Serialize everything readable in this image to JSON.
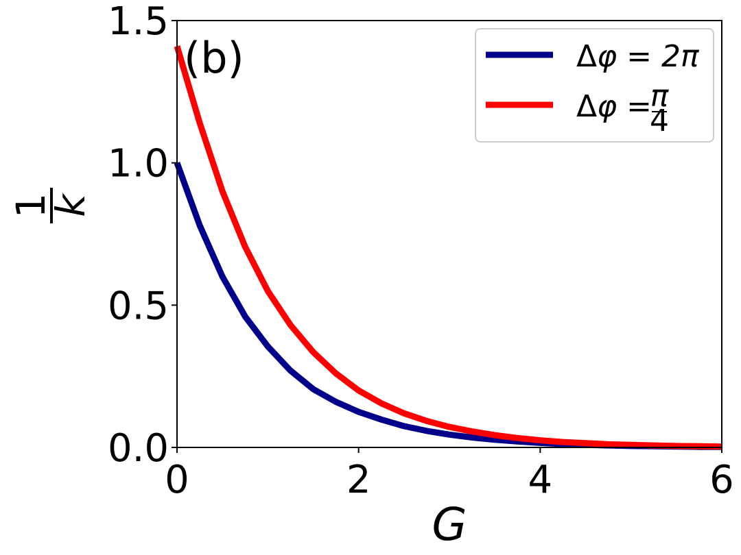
{
  "chart_data": {
    "type": "line",
    "panel_label": "(b)",
    "xlabel": "G",
    "ylabel_numerator": "1",
    "ylabel_denominator": "k",
    "xlim": [
      0,
      6
    ],
    "ylim": [
      0,
      1.5
    ],
    "xticks": [
      "0",
      "2",
      "4",
      "6"
    ],
    "yticks": [
      "0.0",
      "0.5",
      "1.0",
      "1.5"
    ],
    "grid": false,
    "legend_position": "top-right",
    "x": [
      0,
      0.25,
      0.5,
      0.75,
      1.0,
      1.25,
      1.5,
      1.75,
      2.0,
      2.25,
      2.5,
      2.75,
      3.0,
      3.25,
      3.5,
      3.75,
      4.0,
      4.25,
      4.5,
      4.75,
      5.0,
      5.25,
      5.5,
      5.75,
      6.0
    ],
    "series": [
      {
        "name": "Δφ = 2π",
        "legend_prefix": "Δ",
        "legend_phi": "φ",
        "legend_eq": " = ",
        "legend_value": "2π",
        "color": "#00008b",
        "values": [
          1.0,
          0.78,
          0.6,
          0.46,
          0.355,
          0.27,
          0.205,
          0.16,
          0.125,
          0.098,
          0.075,
          0.058,
          0.045,
          0.035,
          0.027,
          0.021,
          0.016,
          0.012,
          0.009,
          0.007,
          0.005,
          0.004,
          0.003,
          0.002,
          0.002
        ]
      },
      {
        "name": "Δφ = π/4",
        "legend_prefix": "Δ",
        "legend_phi": "φ",
        "legend_eq": " = ",
        "legend_frac_num": "π",
        "legend_frac_den": "4",
        "color": "#ff0000",
        "values": [
          1.41,
          1.14,
          0.9,
          0.705,
          0.55,
          0.43,
          0.335,
          0.26,
          0.2,
          0.155,
          0.12,
          0.093,
          0.072,
          0.056,
          0.043,
          0.033,
          0.025,
          0.019,
          0.015,
          0.011,
          0.009,
          0.007,
          0.005,
          0.004,
          0.003
        ]
      }
    ]
  }
}
